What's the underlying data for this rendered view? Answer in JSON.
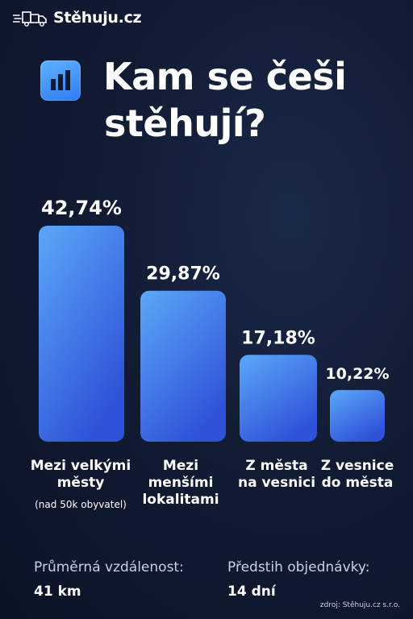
{
  "brand": {
    "name": "Stěhuju.cz"
  },
  "title_lines": [
    "Kam se češi",
    "stěhují?"
  ],
  "chart_data": {
    "type": "bar",
    "categories": [
      "Mezi velkými městy",
      "Mezi menšími lokalitami",
      "Z města na vesnici",
      "Z vesnice do města"
    ],
    "category_lines": [
      [
        "Mezi velkými",
        "městy"
      ],
      [
        "Mezi",
        "menšími",
        "lokalitami"
      ],
      [
        "Z města",
        "na vesnici"
      ],
      [
        "Z vesnice",
        "do města"
      ]
    ],
    "category_notes": [
      "(nad 50k obyvatel)",
      "",
      "",
      ""
    ],
    "values": [
      42.74,
      29.87,
      17.18,
      10.22
    ],
    "value_labels": [
      "42,74%",
      "29,87%",
      "17,18%",
      "10,22%"
    ],
    "unit": "%",
    "ylim": [
      0,
      42.74
    ],
    "grid": false,
    "colors": {
      "bar_top": "#5aa8f8",
      "bar_bottom": "#2f52d8"
    }
  },
  "stats": [
    {
      "label": "Průměrná vzdálenost:",
      "value": "41 km"
    },
    {
      "label": "Předstih objednávky:",
      "value": "14 dní"
    }
  ],
  "source": "zdroj: Stěhuju.cz s.r.o."
}
